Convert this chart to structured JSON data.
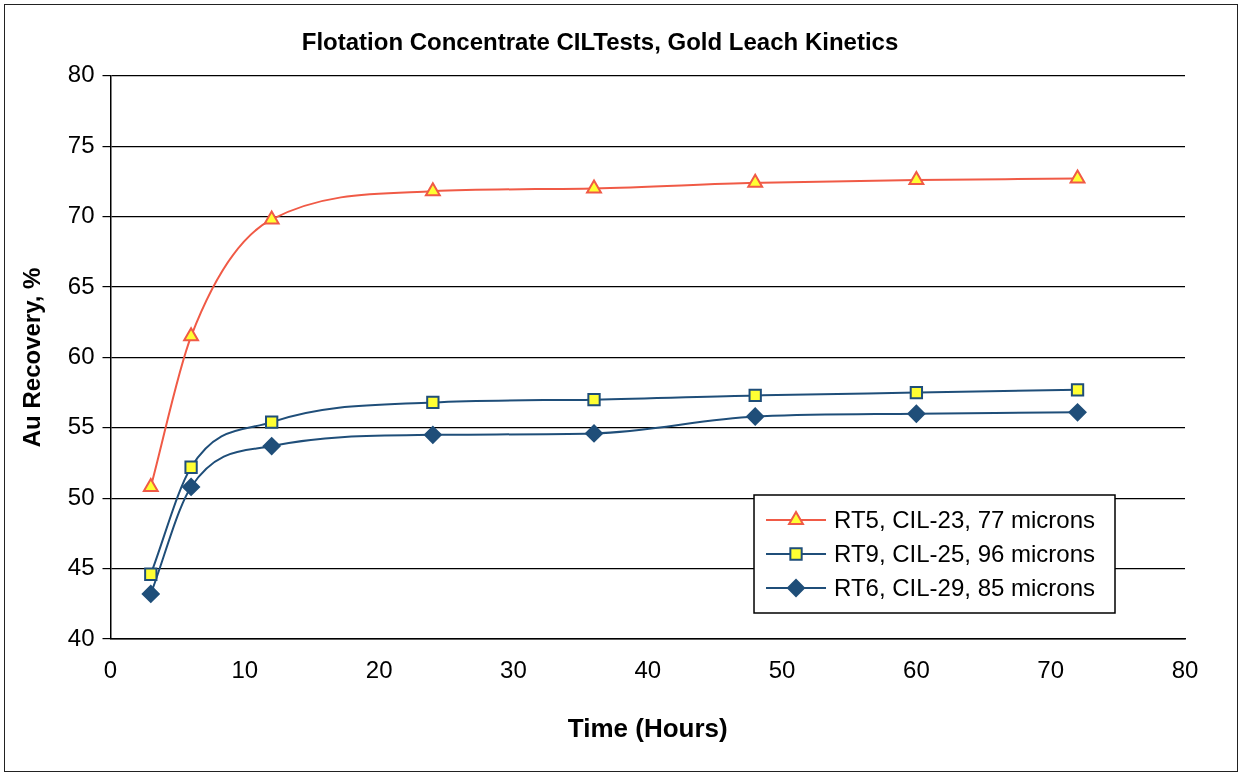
{
  "chart_data": {
    "type": "line",
    "title": "Flotation Concentrate CILTests, Gold Leach Kinetics",
    "xlabel": "Time (Hours)",
    "ylabel": "Au Recovery, %",
    "x": [
      3,
      6,
      12,
      24,
      36,
      48,
      60,
      72
    ],
    "series": [
      {
        "name": "RT5, CIL-23, 77 microns",
        "color": "#f05a46",
        "marker": "triangle",
        "values": [
          50.8,
          61.5,
          69.8,
          71.8,
          72.0,
          72.4,
          72.6,
          72.7
        ]
      },
      {
        "name": "RT9, CIL-25, 96 microns",
        "color": "#1f4e79",
        "marker": "square",
        "values": [
          44.6,
          52.2,
          55.4,
          56.8,
          57.0,
          57.3,
          57.5,
          57.7
        ]
      },
      {
        "name": "RT6, CIL-29, 85 microns",
        "color": "#1f4e79",
        "marker": "diamond",
        "values": [
          43.2,
          50.8,
          53.7,
          54.5,
          54.6,
          55.8,
          56.0,
          56.1
        ]
      }
    ],
    "xlim": [
      0,
      80
    ],
    "xticks": [
      0,
      10,
      20,
      30,
      40,
      50,
      60,
      70,
      80
    ],
    "ylim": [
      40,
      80
    ],
    "yticks": [
      40,
      45,
      50,
      55,
      60,
      65,
      70,
      75,
      80
    ],
    "grid": "y",
    "legend": "bottom right"
  }
}
